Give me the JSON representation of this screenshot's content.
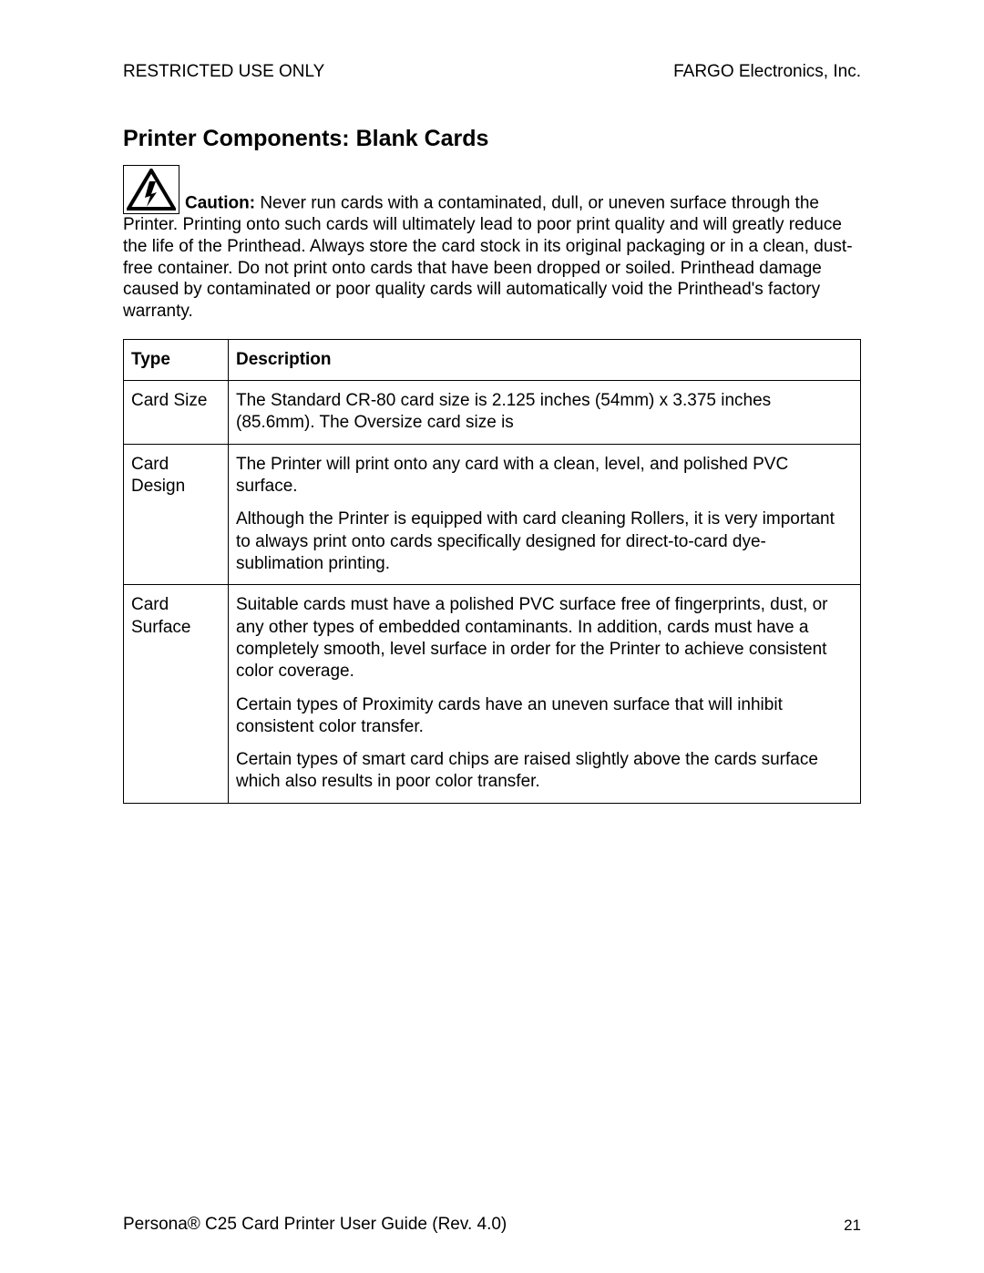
{
  "header": {
    "left": "RESTRICTED USE ONLY",
    "right": "FARGO Electronics, Inc."
  },
  "section_title": "Printer Components:  Blank Cards",
  "caution": {
    "label": "Caution:",
    "text": "  Never run cards with a contaminated, dull, or uneven surface through the Printer. Printing onto such cards will ultimately lead to poor print quality and will greatly reduce the life of the Printhead.  Always store the card stock in its original packaging or in a clean, dust-free container.  Do not print onto cards that have been dropped or soiled.  Printhead damage caused by contaminated or poor quality cards will automatically void the Printhead's factory warranty.",
    "icon_stroke": "#000000",
    "icon_fill": "#000000"
  },
  "table": {
    "columns": [
      "Type",
      "Description"
    ],
    "rows": [
      {
        "type": "Card Size",
        "desc": [
          "The Standard CR-80 card size is 2.125 inches (54mm) x 3.375 inches (85.6mm).  The Oversize card size is"
        ]
      },
      {
        "type": "Card Design",
        "desc": [
          "The Printer will print onto any card with a clean, level, and polished PVC surface.",
          "Although the Printer is equipped with card cleaning Rollers, it is very important to always print onto cards specifically designed for direct-to-card dye-sublimation printing."
        ]
      },
      {
        "type": "Card Surface",
        "desc": [
          "Suitable cards must have a polished PVC surface free of fingerprints, dust, or any other types of embedded contaminants.  In addition, cards must have a completely smooth, level surface in order for the Printer to achieve consistent color coverage.",
          "Certain types of Proximity cards have an uneven surface that will inhibit consistent color transfer.",
          "Certain types of smart card chips are raised slightly above the cards surface which also results in poor color transfer."
        ]
      }
    ]
  },
  "footer": {
    "left": "Persona® C25 Card Printer User Guide (Rev. 4.0)",
    "page": "21"
  }
}
